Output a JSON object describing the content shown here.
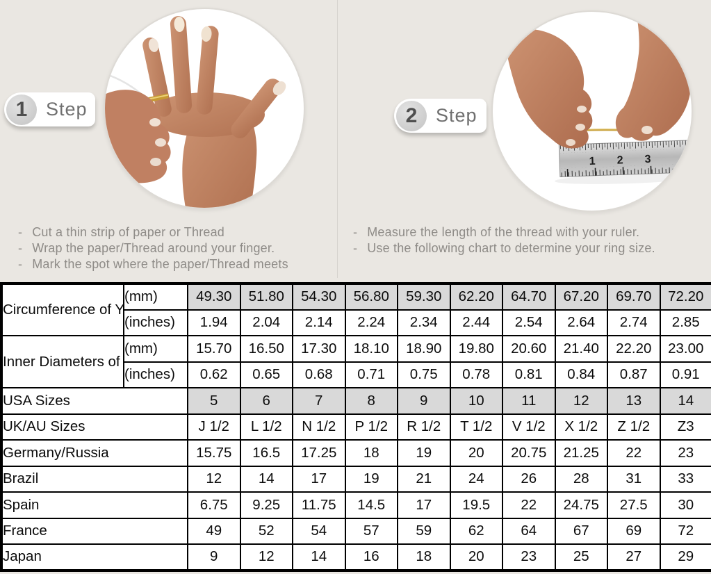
{
  "colors": {
    "page_bg": "#eae7e2",
    "cell_shaded": "#d9d9d9",
    "table_border": "#000000",
    "instruction_text": "#8e8b87",
    "thread_gold": "#c9a23c"
  },
  "steps": [
    {
      "badge_number": "1",
      "badge_label": "Step",
      "photo": "hand-with-thread-wrapped-around-finger",
      "instructions": [
        "Cut a thin strip of paper or Thread",
        "Wrap the paper/Thread around your finger.",
        "Mark the spot where the paper/Thread meets"
      ]
    },
    {
      "badge_number": "2",
      "badge_label": "Step",
      "photo": "hands-measuring-thread-with-ruler",
      "instructions": [
        "Measure the length of the thread with your ruler.",
        "Use the following chart to determine your ring size."
      ]
    }
  ],
  "ruler_numbers": [
    "1",
    "2",
    "3"
  ],
  "size_chart": {
    "measure_groups": [
      {
        "label": "Circumference\nof Your Finger",
        "rows": [
          {
            "unit": "(mm)",
            "shaded": true,
            "values": [
              "49.30",
              "51.80",
              "54.30",
              "56.80",
              "59.30",
              "62.20",
              "64.70",
              "67.20",
              "69.70",
              "72.20"
            ]
          },
          {
            "unit": "(inches)",
            "shaded": false,
            "values": [
              "1.94",
              "2.04",
              "2.14",
              "2.24",
              "2.34",
              "2.44",
              "2.54",
              "2.64",
              "2.74",
              "2.85"
            ]
          }
        ]
      },
      {
        "label": "Inner Diameters\nof Rings",
        "rows": [
          {
            "unit": "(mm)",
            "shaded": false,
            "values": [
              "15.70",
              "16.50",
              "17.30",
              "18.10",
              "18.90",
              "19.80",
              "20.60",
              "21.40",
              "22.20",
              "23.00"
            ]
          },
          {
            "unit": "(inches)",
            "shaded": false,
            "values": [
              "0.62",
              "0.65",
              "0.68",
              "0.71",
              "0.75",
              "0.78",
              "0.81",
              "0.84",
              "0.87",
              "0.91"
            ]
          }
        ]
      }
    ],
    "region_rows": [
      {
        "label": "USA Sizes",
        "shaded": true,
        "values": [
          "5",
          "6",
          "7",
          "8",
          "9",
          "10",
          "11",
          "12",
          "13",
          "14"
        ]
      },
      {
        "label": "UK/AU Sizes",
        "shaded": false,
        "values": [
          "J 1/2",
          "L 1/2",
          "N 1/2",
          "P 1/2",
          "R 1/2",
          "T 1/2",
          "V 1/2",
          "X 1/2",
          "Z 1/2",
          "Z3"
        ]
      },
      {
        "label": "Germany/Russia",
        "shaded": false,
        "values": [
          "15.75",
          "16.5",
          "17.25",
          "18",
          "19",
          "20",
          "20.75",
          "21.25",
          "22",
          "23"
        ]
      },
      {
        "label": "Brazil",
        "shaded": false,
        "values": [
          "12",
          "14",
          "17",
          "19",
          "21",
          "24",
          "26",
          "28",
          "31",
          "33"
        ]
      },
      {
        "label": "Spain",
        "shaded": false,
        "values": [
          "6.75",
          "9.25",
          "11.75",
          "14.5",
          "17",
          "19.5",
          "22",
          "24.75",
          "27.5",
          "30"
        ]
      },
      {
        "label": "France",
        "shaded": false,
        "values": [
          "49",
          "52",
          "54",
          "57",
          "59",
          "62",
          "64",
          "67",
          "69",
          "72"
        ]
      },
      {
        "label": "Japan",
        "shaded": false,
        "values": [
          "9",
          "12",
          "14",
          "16",
          "18",
          "20",
          "23",
          "25",
          "27",
          "29"
        ]
      }
    ]
  }
}
